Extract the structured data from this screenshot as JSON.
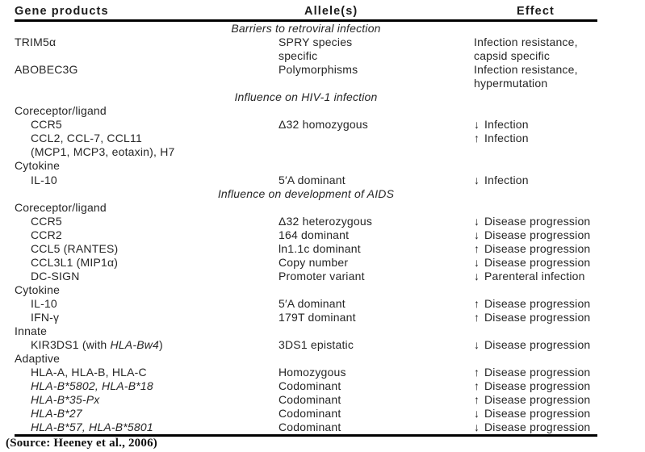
{
  "page": {
    "background": "#ffffff",
    "text_color": "#262626",
    "rule_color": "#000000"
  },
  "table": {
    "headers": [
      {
        "label": "Gene products"
      },
      {
        "label": "Allele(s)"
      },
      {
        "label": "Effect"
      }
    ],
    "rows": [
      {
        "type": "section",
        "text": "Barriers to retroviral infection"
      },
      {
        "type": "item",
        "indent": 0,
        "gene": "TRIM5α",
        "allele": "SPRY species",
        "effect": "Infection resistance,"
      },
      {
        "type": "item",
        "indent": 0,
        "gene": "",
        "allele": "specific",
        "effect": "capsid specific"
      },
      {
        "type": "item",
        "indent": 0,
        "gene": "ABOBEC3G",
        "allele": "Polymorphisms",
        "effect": "Infection resistance,"
      },
      {
        "type": "item",
        "indent": 0,
        "gene": "",
        "allele": "",
        "effect": "hypermutation"
      },
      {
        "type": "section",
        "text": "Influence on HIV-1 infection"
      },
      {
        "type": "group",
        "text": "Coreceptor/ligand"
      },
      {
        "type": "item",
        "indent": 1,
        "gene": "CCR5",
        "allele": "Δ32 homozygous",
        "arrow": "↓",
        "arrow_dir": "down",
        "effect": "Infection"
      },
      {
        "type": "item",
        "indent": 1,
        "gene": "CCL2, CCL-7, CCL11",
        "allele": "",
        "arrow": "↑",
        "arrow_dir": "up",
        "effect": "Infection"
      },
      {
        "type": "item",
        "indent": 1,
        "gene": "(MCP1, MCP3, eotaxin), H7",
        "allele": "",
        "effect": ""
      },
      {
        "type": "group",
        "text": "Cytokine"
      },
      {
        "type": "item",
        "indent": 1,
        "gene": "IL-10",
        "allele": "5′A dominant",
        "arrow": "↓",
        "arrow_dir": "down",
        "effect": "Infection"
      },
      {
        "type": "section",
        "text": "Influence on development of AIDS"
      },
      {
        "type": "group",
        "text": "Coreceptor/ligand"
      },
      {
        "type": "item",
        "indent": 1,
        "gene": "CCR5",
        "allele": "Δ32 heterozygous",
        "arrow": "↓",
        "arrow_dir": "down",
        "effect": "Disease progression"
      },
      {
        "type": "item",
        "indent": 1,
        "gene": "CCR2",
        "allele": "164 dominant",
        "arrow": "↓",
        "arrow_dir": "down",
        "effect": "Disease progression"
      },
      {
        "type": "item",
        "indent": 1,
        "gene": "CCL5 (RANTES)",
        "allele": "ln1.1c dominant",
        "arrow": "↑",
        "arrow_dir": "up",
        "effect": "Disease progression"
      },
      {
        "type": "item",
        "indent": 1,
        "gene": "CCL3L1 (MIP1α)",
        "allele": "Copy number",
        "arrow": "↓",
        "arrow_dir": "down",
        "effect": "Disease progression"
      },
      {
        "type": "item",
        "indent": 1,
        "gene": "DC-SIGN",
        "allele": "Promoter variant",
        "arrow": "↓",
        "arrow_dir": "down",
        "effect": "Parenteral infection"
      },
      {
        "type": "group",
        "text": "Cytokine"
      },
      {
        "type": "item",
        "indent": 1,
        "gene": "IL-10",
        "allele": "5′A dominant",
        "arrow": "↑",
        "arrow_dir": "up",
        "effect": "Disease progression"
      },
      {
        "type": "item",
        "indent": 1,
        "gene": "IFN-γ",
        "allele": "179T dominant",
        "arrow": "↑",
        "arrow_dir": "up",
        "effect": "Disease progression"
      },
      {
        "type": "group",
        "text": "Innate"
      },
      {
        "type": "item",
        "indent": 1,
        "gene_parts": [
          {
            "t": "KIR3DS1 (with ",
            "i": false
          },
          {
            "t": "HLA-Bw4",
            "i": true
          },
          {
            "t": ")",
            "i": false
          }
        ],
        "allele": "3DS1 epistatic",
        "arrow": "↓",
        "arrow_dir": "down",
        "effect": "Disease progression"
      },
      {
        "type": "group",
        "text": "Adaptive"
      },
      {
        "type": "item",
        "indent": 1,
        "gene": "HLA-A, HLA-B, HLA-C",
        "allele": "Homozygous",
        "arrow": "↑",
        "arrow_dir": "up",
        "effect": "Disease progression"
      },
      {
        "type": "item",
        "indent": 1,
        "italic": true,
        "gene": "HLA-B*5802, HLA-B*18",
        "allele": "Codominant",
        "arrow": "↑",
        "arrow_dir": "up",
        "effect": "Disease progression"
      },
      {
        "type": "item",
        "indent": 1,
        "italic": true,
        "gene": "HLA-B*35-Px",
        "allele": "Codominant",
        "arrow": "↑",
        "arrow_dir": "up",
        "effect": "Disease progression"
      },
      {
        "type": "item",
        "indent": 1,
        "italic": true,
        "gene": "HLA-B*27",
        "allele": "Codominant",
        "arrow": "↓",
        "arrow_dir": "down",
        "effect": "Disease progression"
      },
      {
        "type": "item",
        "indent": 1,
        "italic": true,
        "gene": "HLA-B*57, HLA-B*5801",
        "allele": "Codominant",
        "arrow": "↓",
        "arrow_dir": "down",
        "effect": "Disease progression"
      }
    ]
  },
  "footer": {
    "source": "(Source: Heeney et al., 2006)"
  }
}
